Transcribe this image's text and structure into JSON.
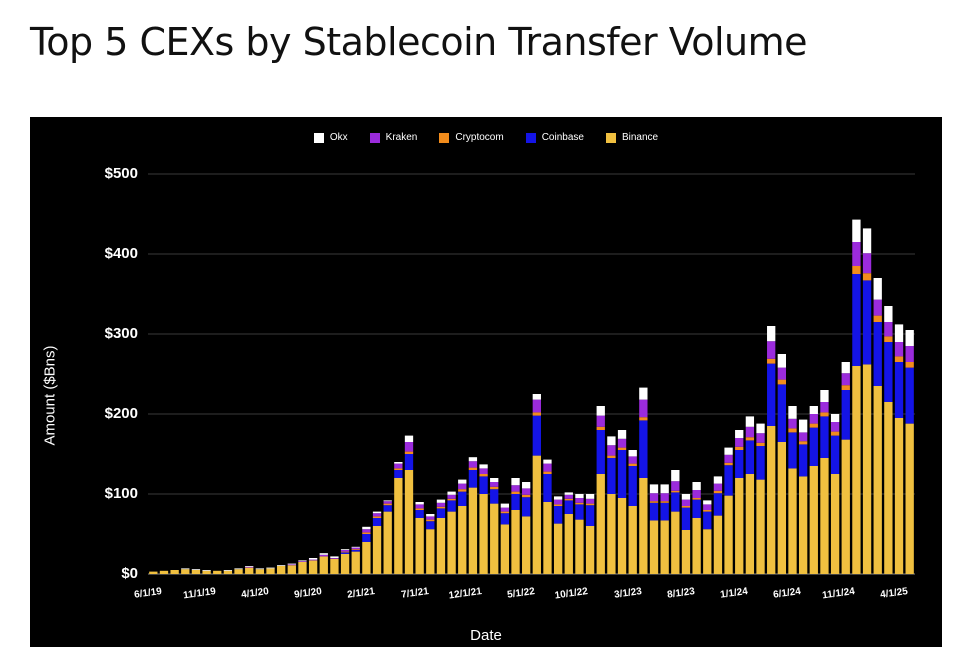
{
  "title": "Top 5 CEXs by Stablecoin Transfer Volume",
  "chart_data": {
    "type": "bar",
    "stacked": true,
    "title": "Top 5 CEXs by Stablecoin Transfer Volume",
    "xlabel": "Date",
    "ylabel": "Amount ($Bns)",
    "ylim": [
      0,
      500
    ],
    "yticks": [
      "$0",
      "$100",
      "$200",
      "$300",
      "$400",
      "$500"
    ],
    "ytick_values": [
      0,
      100,
      200,
      300,
      400,
      500
    ],
    "xtick_labels": [
      "6/1/19",
      "11/1/19",
      "4/1/20",
      "9/1/20",
      "2/1/21",
      "7/1/21",
      "12/1/21",
      "5/1/22",
      "10/1/22",
      "3/1/23",
      "8/1/23",
      "1/1/24",
      "6/1/24",
      "11/1/24",
      "4/1/25"
    ],
    "legend_position": "top-center",
    "series": [
      {
        "name": "Binance",
        "color": "#f0c040"
      },
      {
        "name": "Coinbase",
        "color": "#1414e6"
      },
      {
        "name": "Cryptocom",
        "color": "#f28c1c"
      },
      {
        "name": "Kraken",
        "color": "#9b2bdc"
      },
      {
        "name": "Okx",
        "color": "#ffffff"
      }
    ],
    "legend_order": [
      "Okx",
      "Kraken",
      "Cryptocom",
      "Coinbase",
      "Binance"
    ],
    "totals": [
      3,
      4,
      5,
      7,
      6,
      5,
      4,
      5,
      7,
      10,
      7,
      8,
      11,
      13,
      17,
      20,
      26,
      22,
      31,
      34,
      59,
      78,
      92,
      140,
      173,
      90,
      75,
      93,
      103,
      118,
      146,
      137,
      120,
      88,
      120,
      115,
      225,
      143,
      97,
      102,
      100,
      100,
      210,
      172,
      180,
      155,
      233,
      112,
      112,
      130,
      100,
      115,
      92,
      122,
      158,
      180,
      197,
      188,
      310,
      275,
      210,
      193,
      210,
      230,
      200,
      265,
      443,
      432,
      370,
      335,
      312,
      305
    ],
    "binance": [
      3,
      4,
      5,
      6,
      5,
      4,
      4,
      4,
      6,
      8,
      6,
      7,
      10,
      11,
      15,
      17,
      22,
      19,
      25,
      28,
      40,
      60,
      78,
      120,
      130,
      70,
      56,
      70,
      78,
      85,
      108,
      100,
      88,
      62,
      80,
      72,
      148,
      90,
      63,
      75,
      68,
      60,
      125,
      100,
      95,
      85,
      120,
      67,
      67,
      78,
      55,
      70,
      56,
      73,
      98,
      120,
      125,
      118,
      185,
      165,
      132,
      122,
      135,
      145,
      125,
      168,
      260,
      262,
      235,
      215,
      195,
      188
    ],
    "coinbase": [
      0,
      0,
      0,
      0,
      0,
      0,
      0,
      0,
      0,
      0,
      0,
      0,
      0,
      0,
      0,
      0,
      0,
      0,
      2,
      2,
      10,
      10,
      8,
      10,
      20,
      10,
      10,
      12,
      14,
      18,
      22,
      22,
      18,
      14,
      20,
      24,
      50,
      35,
      22,
      17,
      19,
      26,
      55,
      45,
      60,
      50,
      72,
      22,
      22,
      24,
      28,
      23,
      22,
      28,
      38,
      35,
      42,
      42,
      78,
      72,
      45,
      40,
      48,
      52,
      48,
      62,
      115,
      105,
      80,
      75,
      70,
      70
    ],
    "cryptocom": [
      0,
      0,
      0,
      0,
      0,
      0,
      0,
      0,
      0,
      0,
      0,
      0,
      0,
      0,
      0,
      0,
      0,
      0,
      1,
      1,
      2,
      2,
      2,
      2,
      3,
      2,
      2,
      2,
      2,
      3,
      3,
      3,
      3,
      2,
      3,
      3,
      4,
      3,
      2,
      2,
      2,
      2,
      4,
      3,
      3,
      3,
      4,
      2,
      2,
      2,
      2,
      2,
      2,
      3,
      3,
      4,
      4,
      4,
      6,
      6,
      5,
      4,
      5,
      5,
      5,
      6,
      10,
      9,
      8,
      7,
      7,
      7
    ],
    "kraken": [
      0,
      0,
      0,
      0,
      0,
      0,
      0,
      0,
      0,
      1,
      0,
      0,
      0,
      1,
      1,
      1,
      2,
      1,
      2,
      2,
      4,
      4,
      3,
      6,
      12,
      5,
      4,
      5,
      5,
      7,
      8,
      7,
      6,
      5,
      8,
      8,
      16,
      10,
      6,
      5,
      6,
      6,
      14,
      13,
      11,
      9,
      22,
      10,
      10,
      12,
      8,
      10,
      7,
      9,
      10,
      11,
      13,
      12,
      22,
      15,
      12,
      11,
      12,
      13,
      12,
      15,
      30,
      25,
      20,
      18,
      18,
      20
    ],
    "okx": [
      0,
      0,
      0,
      1,
      1,
      1,
      0,
      1,
      1,
      1,
      1,
      1,
      1,
      1,
      1,
      2,
      2,
      2,
      1,
      1,
      3,
      2,
      1,
      2,
      8,
      3,
      3,
      4,
      4,
      5,
      5,
      5,
      5,
      5,
      9,
      8,
      7,
      5,
      4,
      3,
      5,
      6,
      12,
      11,
      11,
      8,
      15,
      11,
      11,
      14,
      7,
      10,
      5,
      9,
      9,
      10,
      13,
      12,
      19,
      17,
      16,
      16,
      10,
      15,
      10,
      14,
      28,
      31,
      27,
      20,
      22,
      20
    ]
  }
}
